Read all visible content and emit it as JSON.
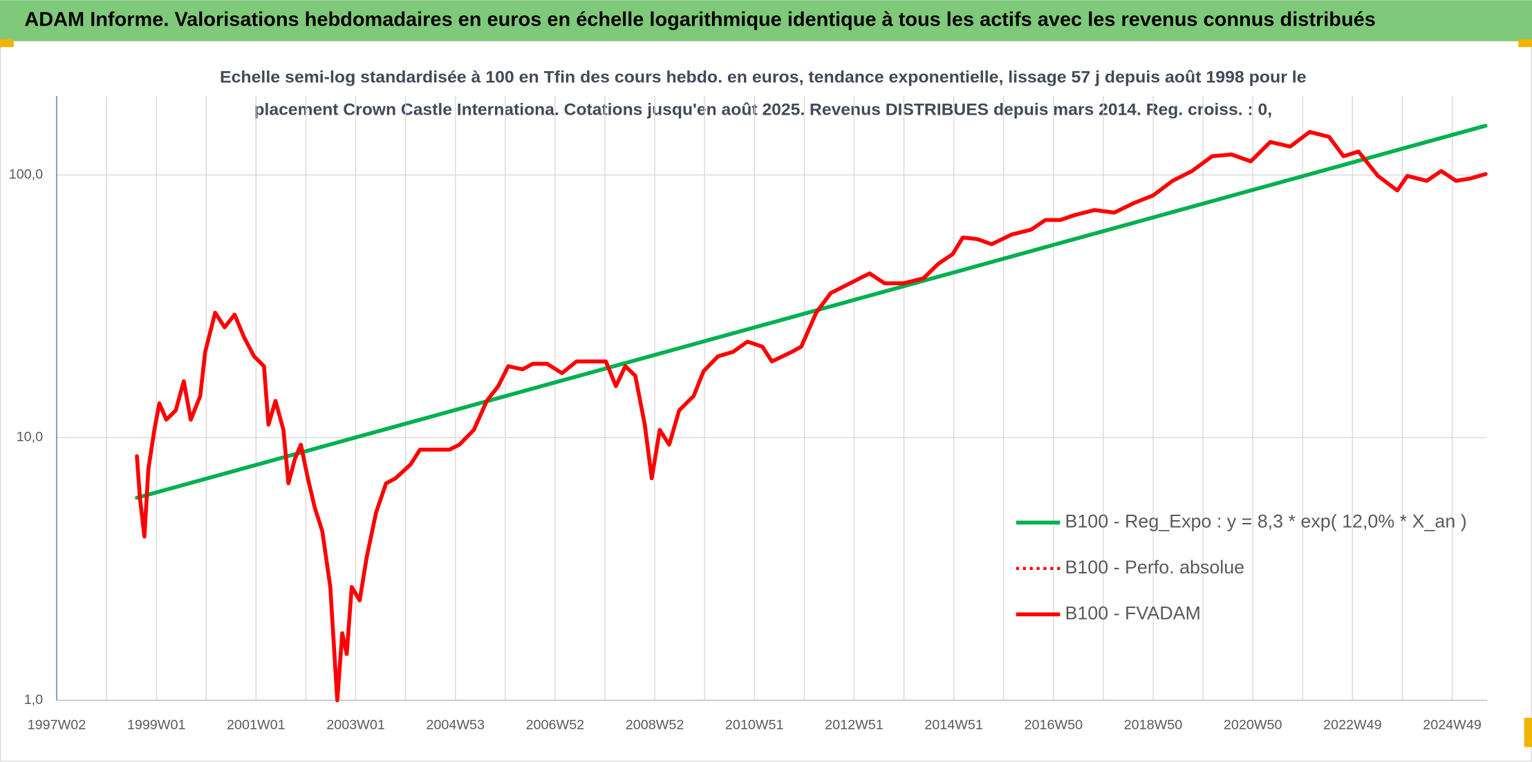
{
  "chart_data": {
    "type": "line",
    "title": "ADAM Informe. Valorisations hebdomadaires en euros en échelle logarithmique identique à tous les actifs avec les revenus connus distribués",
    "subtitle": [
      "Echelle semi-log standardisée à 100 en Tfin des cours hebdo. en euros, tendance exponentielle, lissage 57 j depuis août 1998 pour le",
      "placement Crown Castle Internationa. Cotations jusqu'en août 2025. Revenus DISTRIBUES depuis mars 2014. Reg. croiss. : 0,"
    ],
    "log_y": true,
    "grid": true,
    "legend": "lower right",
    "xlim": [
      1997,
      2025.7
    ],
    "ylim": [
      1,
      200
    ],
    "yticks": [
      {
        "value": 1,
        "label": "1,0"
      },
      {
        "value": 10,
        "label": "10,0"
      },
      {
        "value": 100,
        "label": "100,0"
      }
    ],
    "xticks": [
      {
        "value": 1997,
        "label": "1997W02"
      },
      {
        "value": 1999,
        "label": "1999W01"
      },
      {
        "value": 2001,
        "label": "2001W01"
      },
      {
        "value": 2003,
        "label": "2003W01"
      },
      {
        "value": 2005,
        "label": "2004W53"
      },
      {
        "value": 2007,
        "label": "2006W52"
      },
      {
        "value": 2009,
        "label": "2008W52"
      },
      {
        "value": 2011,
        "label": "2010W51"
      },
      {
        "value": 2013,
        "label": "2012W51"
      },
      {
        "value": 2015,
        "label": "2014W51"
      },
      {
        "value": 2017,
        "label": "2016W50"
      },
      {
        "value": 2019,
        "label": "2018W50"
      },
      {
        "value": 2021,
        "label": "2020W50"
      },
      {
        "value": 2023,
        "label": "2022W49"
      },
      {
        "value": 2025,
        "label": "2024W49"
      }
    ],
    "x": [
      1998.61,
      1998.67,
      1998.76,
      1998.84,
      1998.96,
      1999.06,
      1999.2,
      1999.39,
      1999.55,
      1999.69,
      1999.88,
      1999.98,
      2000.18,
      2000.37,
      2000.57,
      2000.76,
      2000.96,
      2001.16,
      2001.25,
      2001.39,
      2001.55,
      2001.65,
      2001.78,
      2001.9,
      2002.04,
      2002.18,
      2002.33,
      2002.49,
      2002.63,
      2002.73,
      2002.82,
      2002.92,
      2003.08,
      2003.22,
      2003.41,
      2003.61,
      2003.8,
      2004.1,
      2004.29,
      2004.59,
      2004.88,
      2005.08,
      2005.37,
      2005.63,
      2005.86,
      2006.06,
      2006.35,
      2006.55,
      2006.84,
      2007.14,
      2007.43,
      2007.73,
      2008.02,
      2008.22,
      2008.41,
      2008.61,
      2008.8,
      2008.94,
      2009.1,
      2009.29,
      2009.49,
      2009.78,
      2009.98,
      2010.27,
      2010.57,
      2010.86,
      2011.16,
      2011.35,
      2011.75,
      2011.94,
      2012.24,
      2012.53,
      2012.92,
      2013.31,
      2013.61,
      2014.0,
      2014.39,
      2014.69,
      2014.98,
      2015.18,
      2015.47,
      2015.76,
      2016.16,
      2016.55,
      2016.84,
      2017.14,
      2017.43,
      2017.82,
      2018.22,
      2018.61,
      2019.0,
      2019.39,
      2019.78,
      2020.18,
      2020.57,
      2020.96,
      2021.35,
      2021.75,
      2022.14,
      2022.53,
      2022.82,
      2023.12,
      2023.51,
      2023.9,
      2024.1,
      2024.49,
      2024.78,
      2025.08,
      2025.37,
      2025.67
    ],
    "series": [
      {
        "name": "B100 - Reg_Expo : y = 8,3 * exp( 12,0% *  X_an )",
        "color": "#00b050",
        "style": "solid",
        "x": [
          1998.61,
          2025.67
        ],
        "values": [
          5.9,
          154
        ]
      },
      {
        "name": "B100 - Perfo. absolue",
        "color": "#ff0000",
        "style": "dotted",
        "values": [
          8.5,
          5.9,
          4.2,
          7.6,
          10.7,
          13.5,
          11.7,
          12.7,
          16.4,
          11.7,
          14.4,
          21.2,
          29.9,
          26.3,
          29.4,
          24.1,
          20.4,
          18.7,
          11.2,
          13.8,
          10.7,
          6.7,
          8.3,
          9.4,
          7.0,
          5.4,
          4.4,
          2.7,
          1.0,
          1.8,
          1.5,
          2.7,
          2.4,
          3.5,
          5.2,
          6.7,
          7.0,
          7.9,
          9.0,
          9.0,
          9.0,
          9.4,
          10.7,
          13.8,
          15.7,
          18.7,
          18.2,
          19.1,
          19.1,
          17.6,
          19.5,
          19.5,
          19.5,
          15.7,
          18.7,
          17.2,
          11.2,
          7.0,
          10.7,
          9.4,
          12.7,
          14.4,
          17.9,
          20.4,
          21.2,
          23.2,
          22.2,
          19.5,
          21.2,
          22.2,
          29.9,
          35.5,
          38.7,
          42.2,
          38.7,
          38.7,
          40.4,
          45.9,
          50.0,
          57.8,
          57.0,
          54.5,
          59.3,
          61.9,
          67.4,
          67.4,
          70.4,
          73.5,
          71.9,
          78.1,
          83.6,
          95,
          103.5,
          117.8,
          119.7,
          112.7,
          133.6,
          128.3,
          145.8,
          139.7,
          117.8,
          122.8,
          99.2,
          87.3,
          99.2,
          95,
          103.5,
          95,
          97,
          100.8
        ]
      },
      {
        "name": "B100 - FVADAM",
        "color": "#ff0000",
        "style": "solid",
        "values": [
          8.5,
          5.9,
          4.2,
          7.6,
          10.7,
          13.5,
          11.7,
          12.7,
          16.4,
          11.7,
          14.4,
          21.2,
          29.9,
          26.3,
          29.4,
          24.1,
          20.4,
          18.7,
          11.2,
          13.8,
          10.7,
          6.7,
          8.3,
          9.4,
          7.0,
          5.4,
          4.4,
          2.7,
          1.0,
          1.8,
          1.5,
          2.7,
          2.4,
          3.5,
          5.2,
          6.7,
          7.0,
          7.9,
          9.0,
          9.0,
          9.0,
          9.4,
          10.7,
          13.8,
          15.7,
          18.7,
          18.2,
          19.1,
          19.1,
          17.6,
          19.5,
          19.5,
          19.5,
          15.7,
          18.7,
          17.2,
          11.2,
          7.0,
          10.7,
          9.4,
          12.7,
          14.4,
          17.9,
          20.4,
          21.2,
          23.2,
          22.2,
          19.5,
          21.2,
          22.2,
          29.9,
          35.5,
          38.7,
          42.2,
          38.7,
          38.7,
          40.4,
          45.9,
          50.0,
          57.8,
          57.0,
          54.5,
          59.3,
          61.9,
          67.4,
          67.4,
          70.4,
          73.5,
          71.9,
          78.1,
          83.6,
          95,
          103.5,
          117.8,
          119.7,
          112.7,
          133.6,
          128.3,
          145.8,
          139.7,
          117.8,
          122.8,
          99.2,
          87.3,
          99.2,
          95,
          103.5,
          95,
          97,
          100.8
        ]
      }
    ]
  }
}
